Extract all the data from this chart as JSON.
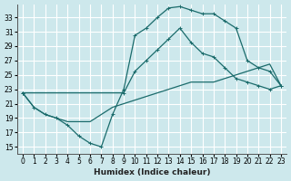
{
  "xlabel": "Humidex (Indice chaleur)",
  "bg_color": "#cde8ec",
  "grid_color": "#b8dde2",
  "line_color": "#1a6b6b",
  "xlim": [
    -0.5,
    23.5
  ],
  "ylim": [
    14.0,
    34.8
  ],
  "yticks": [
    15,
    17,
    19,
    21,
    23,
    25,
    27,
    29,
    31,
    33
  ],
  "xticks": [
    0,
    1,
    2,
    3,
    4,
    5,
    6,
    7,
    8,
    9,
    10,
    11,
    12,
    13,
    14,
    15,
    16,
    17,
    18,
    19,
    20,
    21,
    22,
    23
  ],
  "curve1_x": [
    0,
    1,
    2,
    3,
    4,
    5,
    6,
    7,
    8,
    9,
    10,
    11,
    12,
    13,
    14,
    15,
    16,
    17,
    18,
    19,
    20,
    21,
    22,
    23
  ],
  "curve1_y": [
    22.5,
    20.5,
    19.5,
    19.0,
    18.0,
    16.5,
    15.5,
    15.0,
    19.5,
    23.0,
    30.5,
    31.5,
    33.0,
    34.3,
    34.5,
    34.0,
    33.5,
    33.5,
    32.5,
    31.5,
    27.0,
    26.0,
    25.5,
    23.5
  ],
  "curve2_x": [
    0,
    9,
    10,
    11,
    12,
    13,
    14,
    15,
    16,
    17,
    18,
    19,
    20,
    21,
    22,
    23
  ],
  "curve2_y": [
    22.5,
    22.5,
    25.5,
    27.0,
    28.5,
    30.0,
    31.5,
    29.5,
    28.0,
    27.5,
    26.0,
    24.5,
    24.0,
    23.5,
    23.0,
    23.5
  ],
  "curve3_x": [
    0,
    1,
    2,
    3,
    4,
    5,
    6,
    7,
    8,
    9,
    10,
    11,
    12,
    13,
    14,
    15,
    16,
    17,
    18,
    19,
    20,
    21,
    22,
    23
  ],
  "curve3_y": [
    22.5,
    20.5,
    19.5,
    19.0,
    18.5,
    18.5,
    18.5,
    19.5,
    20.5,
    21.0,
    21.5,
    22.0,
    22.5,
    23.0,
    23.5,
    24.0,
    24.0,
    24.0,
    24.5,
    25.0,
    25.5,
    26.0,
    26.5,
    23.5
  ]
}
